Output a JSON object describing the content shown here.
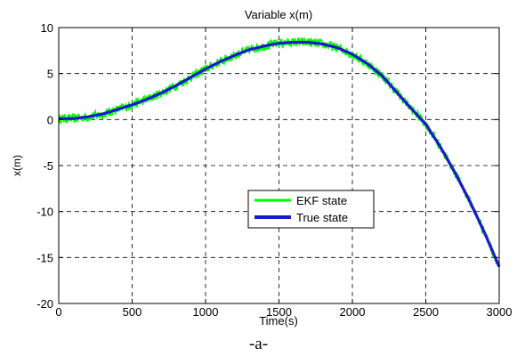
{
  "chart_data": {
    "type": "line",
    "title": "Variable x(m)",
    "xlabel": "Time(s)",
    "ylabel": "x(m)",
    "xlim": [
      0,
      3000
    ],
    "ylim": [
      -20,
      10
    ],
    "xticks": [
      0,
      500,
      1000,
      1500,
      2000,
      2500,
      3000
    ],
    "yticks": [
      -20,
      -15,
      -10,
      -5,
      0,
      5,
      10
    ],
    "grid": true,
    "legend_position": "center-right",
    "series": [
      {
        "name": "EKF state",
        "color": "#00ff00",
        "noise": 0.5,
        "x": [
          0,
          100,
          200,
          300,
          400,
          500,
          600,
          700,
          800,
          900,
          1000,
          1100,
          1200,
          1300,
          1400,
          1500,
          1600,
          1700,
          1800,
          1900,
          2000,
          2100,
          2200,
          2300,
          2400,
          2500,
          2600,
          2700,
          2800,
          2900,
          3000
        ],
        "y": [
          0.1,
          0.1,
          0.3,
          0.6,
          1.1,
          1.6,
          2.2,
          2.9,
          3.7,
          4.6,
          5.5,
          6.3,
          7.0,
          7.6,
          8.0,
          8.3,
          8.4,
          8.4,
          8.2,
          7.8,
          7.1,
          6.1,
          4.8,
          3.0,
          1.2,
          -0.5,
          -3.0,
          -5.8,
          -8.9,
          -12.3,
          -16.0
        ]
      },
      {
        "name": "True state",
        "color": "#1a1acc",
        "x": [
          0,
          100,
          200,
          300,
          400,
          500,
          600,
          700,
          800,
          900,
          1000,
          1100,
          1200,
          1300,
          1400,
          1500,
          1600,
          1700,
          1800,
          1900,
          2000,
          2100,
          2200,
          2300,
          2400,
          2500,
          2600,
          2700,
          2800,
          2900,
          3000
        ],
        "y": [
          0.1,
          0.1,
          0.3,
          0.6,
          1.1,
          1.6,
          2.2,
          2.9,
          3.7,
          4.6,
          5.5,
          6.3,
          7.0,
          7.6,
          8.0,
          8.3,
          8.4,
          8.4,
          8.2,
          7.8,
          7.1,
          6.1,
          4.8,
          3.0,
          1.2,
          -0.5,
          -3.0,
          -5.8,
          -8.9,
          -12.3,
          -16.0
        ]
      }
    ]
  },
  "caption": "-a-"
}
